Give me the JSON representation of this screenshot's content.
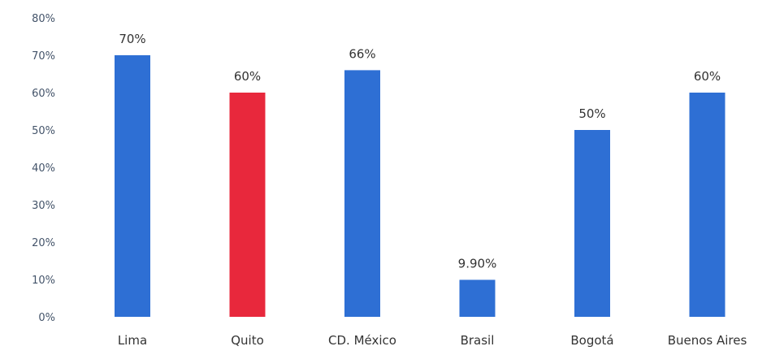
{
  "chart_data": {
    "type": "bar",
    "categories": [
      "Lima",
      "Quito",
      "CD. México",
      "Brasil",
      "Bogotá",
      "Buenos Aires"
    ],
    "values": [
      70,
      60,
      66,
      9.9,
      50,
      60
    ],
    "data_labels": [
      "70%",
      "60%",
      "66%",
      "9.90%",
      "50%",
      "60%"
    ],
    "ylim": [
      0,
      80
    ],
    "yticks": [
      0,
      10,
      20,
      30,
      40,
      50,
      60,
      70,
      80
    ],
    "ytick_labels": [
      "0%",
      "10%",
      "20%",
      "30%",
      "40%",
      "50%",
      "60%",
      "70%",
      "80%"
    ],
    "grid": false,
    "legend": "none",
    "colors": {
      "default": "#2e6fd4",
      "highlight": "#e8283c",
      "highlight_category": "Quito"
    }
  }
}
